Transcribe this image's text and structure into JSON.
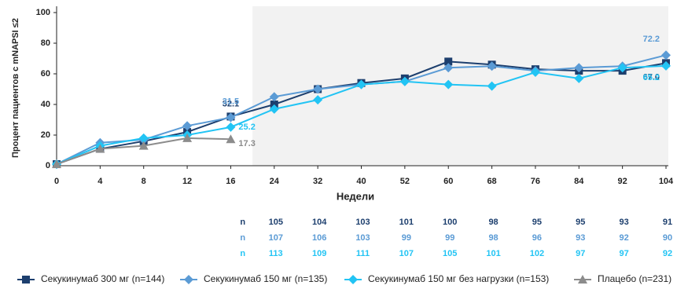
{
  "chart_data": {
    "type": "line",
    "y_label": "Процент пациентов с mNAPSI ≤2",
    "x_label": "Недели",
    "categories": [
      0,
      4,
      8,
      12,
      16,
      24,
      32,
      40,
      52,
      60,
      68,
      76,
      84,
      92,
      104
    ],
    "ylim": [
      0,
      100
    ],
    "yticks": [
      0,
      20,
      40,
      60,
      80,
      100
    ],
    "shaded_from_category": 24,
    "series": [
      {
        "name": "Секукинумаб 300 мг (n=144)",
        "color": "#1d3f6e",
        "marker": "square",
        "values": [
          1,
          11,
          16,
          22,
          32.1,
          40,
          50,
          54,
          57,
          68,
          66,
          63,
          62,
          62,
          67.0
        ],
        "value_labels": [
          null,
          null,
          null,
          null,
          "32.1",
          null,
          null,
          null,
          null,
          null,
          null,
          null,
          null,
          null,
          "67.0"
        ]
      },
      {
        "name": "Секукинумаб 150 мг (n=135)",
        "color": "#5b9bd5",
        "marker": "diamond",
        "values": [
          1,
          15,
          17,
          26,
          31.5,
          45,
          50,
          53,
          55,
          64,
          65,
          62,
          64,
          65,
          72.2
        ],
        "value_labels": [
          null,
          null,
          null,
          null,
          "31.5",
          null,
          null,
          null,
          null,
          null,
          null,
          null,
          null,
          null,
          "72.2"
        ]
      },
      {
        "name": "Секукинумаб 150 мг без нагрузки (n=153)",
        "color": "#22c4f4",
        "marker": "diamond",
        "values": [
          1,
          13,
          18,
          20,
          25.2,
          37,
          43,
          53,
          55,
          53,
          52,
          61,
          57,
          64,
          65.2
        ],
        "value_labels": [
          null,
          null,
          null,
          null,
          "25.2",
          null,
          null,
          null,
          null,
          null,
          null,
          null,
          null,
          null,
          "65.2"
        ]
      },
      {
        "name": "Плацебо (n=231)",
        "color": "#8c8c8c",
        "marker": "triangle",
        "values": [
          1,
          11,
          13,
          18,
          17.3,
          null,
          null,
          null,
          null,
          null,
          null,
          null,
          null,
          null,
          null
        ],
        "value_labels": [
          null,
          null,
          null,
          null,
          "17.3",
          null,
          null,
          null,
          null,
          null,
          null,
          null,
          null,
          null,
          null
        ]
      }
    ],
    "n_table": {
      "start_category": 24,
      "rows": [
        {
          "label": "n",
          "color": "#1d3f6e",
          "values": [
            105,
            104,
            103,
            101,
            100,
            98,
            95,
            95,
            93,
            91
          ]
        },
        {
          "label": "n",
          "color": "#5b9bd5",
          "values": [
            107,
            106,
            103,
            99,
            99,
            98,
            96,
            93,
            92,
            90
          ]
        },
        {
          "label": "n",
          "color": "#22c4f4",
          "values": [
            113,
            109,
            111,
            107,
            105,
            101,
            102,
            97,
            97,
            92
          ]
        }
      ]
    }
  }
}
